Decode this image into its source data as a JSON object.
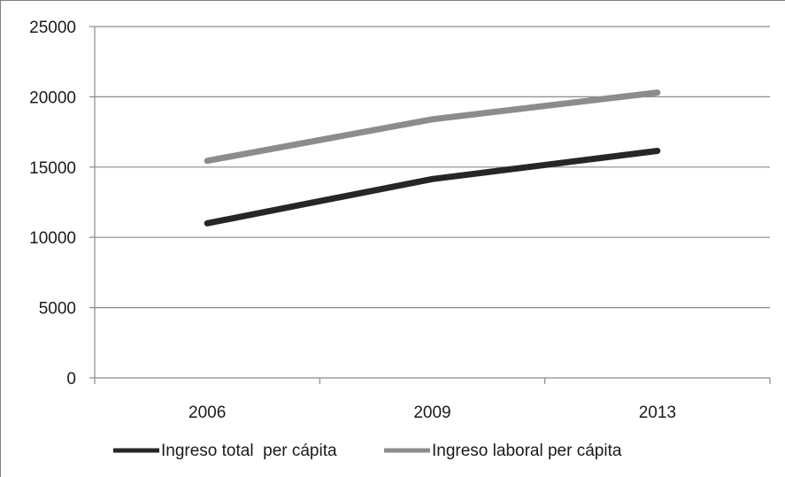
{
  "chart_data": {
    "type": "line",
    "categories": [
      "2006",
      "2009",
      "2013"
    ],
    "series": [
      {
        "name": "Ingreso total  per cápita",
        "values": [
          11000,
          14150,
          16150
        ],
        "color": "#262626"
      },
      {
        "name": "Ingreso laboral per cápita",
        "values": [
          15450,
          18400,
          20300
        ],
        "color": "#8c8c8c"
      }
    ],
    "ylim": [
      0,
      25000
    ],
    "yticks": [
      0,
      5000,
      10000,
      15000,
      20000,
      25000
    ],
    "grid": true,
    "legend_position": "bottom",
    "title": "",
    "xlabel": "",
    "ylabel": ""
  }
}
